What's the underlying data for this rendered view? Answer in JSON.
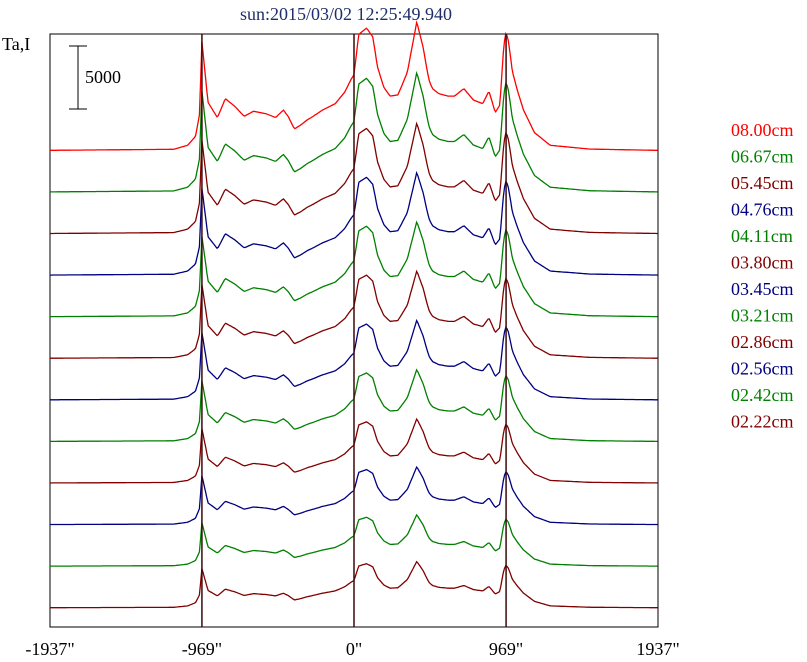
{
  "chart_data": {
    "type": "line",
    "title": "sun:2015/03/02 12:25:49.940",
    "ylabel": "Ta,I",
    "scale_bar_label": "5000",
    "scale_bar_value": 5000,
    "xlim": [
      -1937,
      1937
    ],
    "x_ticks": [
      {
        "value": -1937,
        "label": "-1937\""
      },
      {
        "value": -969,
        "label": "-969\""
      },
      {
        "value": 0,
        "label": "0\""
      },
      {
        "value": 969,
        "label": "969\""
      },
      {
        "value": 1937,
        "label": "1937\""
      }
    ],
    "vlines": [
      -969,
      0,
      969
    ],
    "grid": false,
    "legend_position": "right",
    "series_offsets": [
      0,
      3300,
      6600,
      9900,
      13200,
      16500,
      19800,
      23100,
      26400,
      29700,
      33000,
      36300
    ],
    "series": [
      {
        "name": "08.00cm",
        "color": "#ff0000",
        "amp": 1.0
      },
      {
        "name": "06.67cm",
        "color": "#008000",
        "amp": 0.93
      },
      {
        "name": "05.45cm",
        "color": "#800000",
        "amp": 0.86
      },
      {
        "name": "04.76cm",
        "color": "#000080",
        "amp": 0.8
      },
      {
        "name": "04.11cm",
        "color": "#008000",
        "amp": 0.74
      },
      {
        "name": "03.80cm",
        "color": "#800000",
        "amp": 0.68
      },
      {
        "name": "03.45cm",
        "color": "#000080",
        "amp": 0.62
      },
      {
        "name": "03.21cm",
        "color": "#008000",
        "amp": 0.56
      },
      {
        "name": "02.86cm",
        "color": "#800000",
        "amp": 0.5
      },
      {
        "name": "02.56cm",
        "color": "#000080",
        "amp": 0.45
      },
      {
        "name": "02.42cm",
        "color": "#008000",
        "amp": 0.4
      },
      {
        "name": "02.22cm",
        "color": "#800000",
        "amp": 0.36
      }
    ],
    "profile": {
      "x": [
        -1937,
        -1150,
        -1060,
        -1010,
        -985,
        -969,
        -955,
        -930,
        -900,
        -870,
        -820,
        -760,
        -700,
        -640,
        -560,
        -500,
        -450,
        -420,
        -380,
        -340,
        -300,
        -260,
        -200,
        -120,
        -60,
        -20,
        0,
        30,
        80,
        120,
        150,
        190,
        230,
        280,
        340,
        400,
        440,
        465,
        480,
        500,
        540,
        600,
        640,
        700,
        760,
        820,
        860,
        900,
        930,
        950,
        960,
        969,
        985,
        1010,
        1040,
        1080,
        1150,
        1250,
        1500,
        1700,
        1937
      ],
      "y": [
        600,
        680,
        1000,
        1700,
        3400,
        9200,
        7500,
        4400,
        3800,
        3200,
        4700,
        4100,
        3300,
        3700,
        3500,
        3200,
        3800,
        3300,
        2300,
        2600,
        3000,
        3300,
        3800,
        4300,
        5200,
        6200,
        6600,
        9800,
        10300,
        9600,
        7200,
        5600,
        4900,
        5000,
        6800,
        10800,
        8800,
        7000,
        6100,
        5500,
        5100,
        4900,
        4900,
        5500,
        4600,
        4300,
        5300,
        3600,
        4200,
        8200,
        9400,
        10000,
        9200,
        6800,
        5400,
        3800,
        2000,
        1000,
        700,
        650,
        600
      ]
    },
    "profile_unit_amp": 9300
  }
}
